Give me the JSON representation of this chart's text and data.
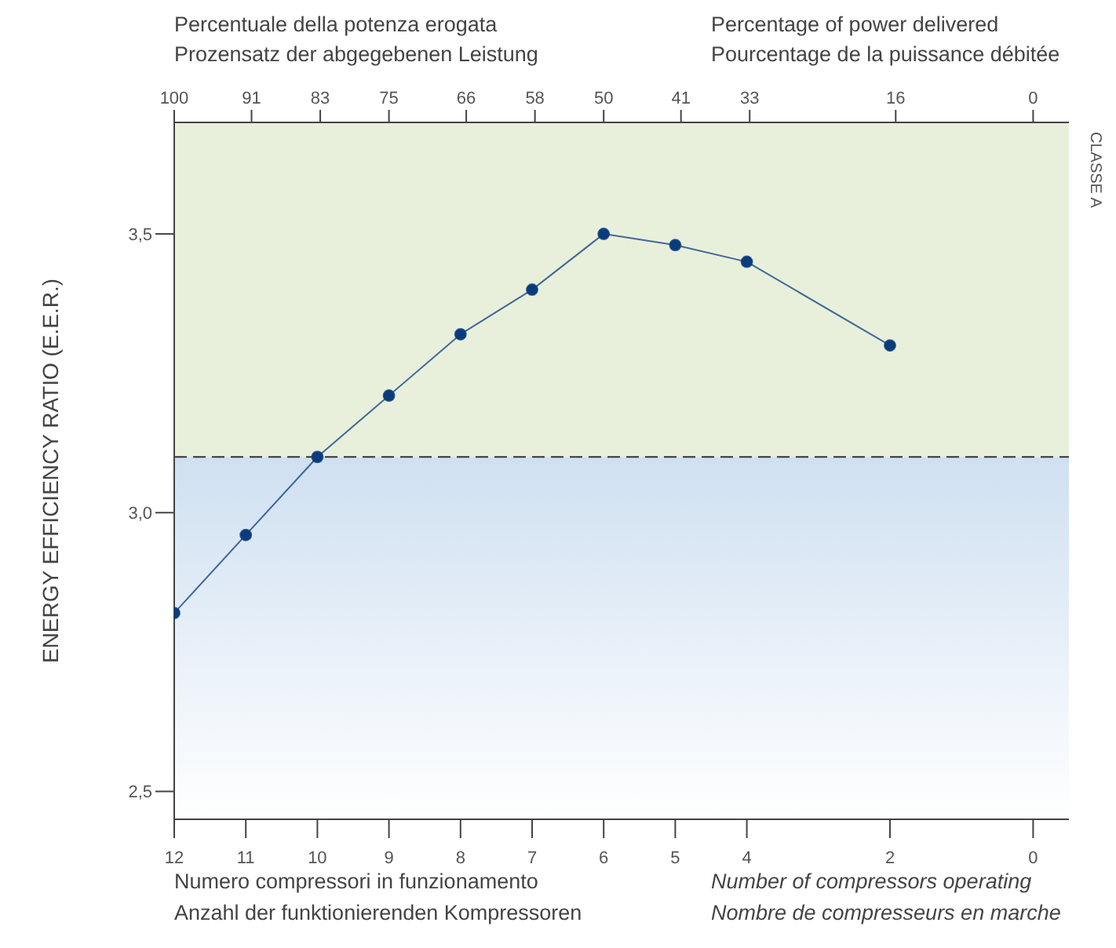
{
  "chart_data": {
    "type": "line",
    "ylabel": "ENERGY EFFICIENCY RATIO (E.E.R.)",
    "x": [
      12,
      11,
      10,
      9,
      8,
      7,
      6,
      5,
      4,
      2
    ],
    "series": [
      {
        "color": "#0a3c7c",
        "values": [
          2.82,
          2.96,
          3.1,
          3.21,
          3.32,
          3.4,
          3.5,
          3.48,
          3.45,
          3.3
        ]
      }
    ],
    "xlim": [
      12,
      -0.5
    ],
    "xticks": [
      12,
      11,
      10,
      9,
      8,
      7,
      6,
      5,
      4,
      2,
      0
    ],
    "x2lim": [
      100,
      -4.1667
    ],
    "x2ticks": [
      100,
      91,
      83,
      75,
      66,
      58,
      50,
      41,
      33,
      16,
      0
    ],
    "ylim": [
      2.45,
      3.7
    ],
    "yticks": [
      {
        "value": 2.5,
        "label": "2,5"
      },
      {
        "value": 3,
        "label": "3,0"
      },
      {
        "value": 3.5,
        "label": "3,5"
      }
    ],
    "ref_lines": [
      {
        "axis": "y",
        "value": 3.1,
        "line_style": "dashed",
        "color": "#333333"
      }
    ],
    "bands": [
      {
        "axis": "y",
        "from": 3.1,
        "to": 3.7,
        "color": "#e8f0dc",
        "label": "CLASSE A"
      },
      {
        "axis": "y",
        "from": 2.45,
        "to": 3.1,
        "color": "#cfe0f1"
      }
    ],
    "annotations": [
      "Numero compressori in funzionamento",
      "Anzahl der funktionierenden Kompressoren",
      "Number of compressors operating",
      "Nombre de compresseurs en marche",
      "Percentuale della potenza erogata",
      "Prozensatz der abgegebenen Leistung",
      "Percentage of power delivered",
      "Pourcentage de la puissance débitée"
    ],
    "marker": "circle",
    "line_style": "solid",
    "grid": false,
    "legend": false
  }
}
